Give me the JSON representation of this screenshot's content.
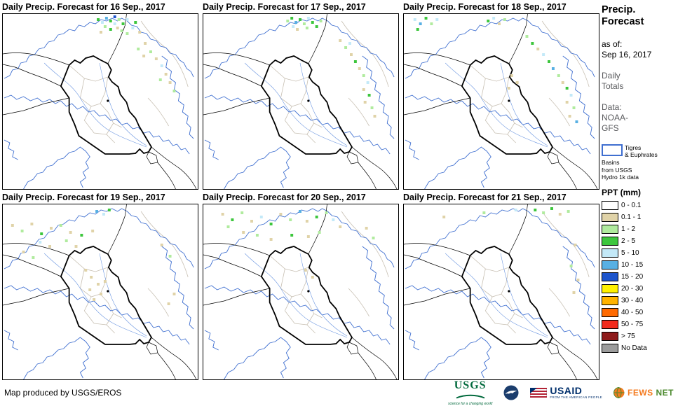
{
  "panels": [
    {
      "title": "Daily Precip. Forecast for 16 Sep., 2017",
      "cells": [
        [
          136,
          6,
          "g"
        ],
        [
          142,
          10,
          "lb"
        ],
        [
          148,
          4,
          "b"
        ],
        [
          154,
          8,
          "g"
        ],
        [
          160,
          2,
          "db"
        ],
        [
          160,
          12,
          "lb"
        ],
        [
          166,
          6,
          "lg"
        ],
        [
          172,
          12,
          "g"
        ],
        [
          178,
          6,
          "lb"
        ],
        [
          146,
          16,
          "lg"
        ],
        [
          154,
          20,
          "g"
        ],
        [
          164,
          18,
          "t"
        ],
        [
          170,
          22,
          "lg"
        ],
        [
          140,
          24,
          "t"
        ],
        [
          178,
          26,
          "lg"
        ],
        [
          186,
          18,
          "lb"
        ],
        [
          190,
          10,
          "g"
        ],
        [
          196,
          24,
          "t"
        ],
        [
          194,
          48,
          "lg"
        ],
        [
          202,
          58,
          "t"
        ],
        [
          204,
          40,
          "t"
        ],
        [
          212,
          52,
          "lg"
        ],
        [
          220,
          62,
          "t"
        ],
        [
          228,
          72,
          "lb"
        ],
        [
          234,
          84,
          "t"
        ],
        [
          226,
          92,
          "lg"
        ],
        [
          240,
          96,
          "t"
        ],
        [
          246,
          108,
          "lg"
        ]
      ]
    },
    {
      "title": "Daily Precip. Forecast for 17 Sep., 2017",
      "cells": [
        [
          120,
          8,
          "lg"
        ],
        [
          126,
          4,
          "g"
        ],
        [
          132,
          10,
          "b"
        ],
        [
          138,
          6,
          "g"
        ],
        [
          144,
          12,
          "lg"
        ],
        [
          150,
          4,
          "lb"
        ],
        [
          156,
          10,
          "g"
        ],
        [
          148,
          18,
          "lg"
        ],
        [
          134,
          20,
          "t"
        ],
        [
          162,
          16,
          "g"
        ],
        [
          168,
          8,
          "lg"
        ],
        [
          128,
          16,
          "lb"
        ],
        [
          196,
          36,
          "t"
        ],
        [
          204,
          46,
          "lg"
        ],
        [
          210,
          40,
          "lb"
        ],
        [
          212,
          56,
          "t"
        ],
        [
          218,
          66,
          "g"
        ],
        [
          224,
          76,
          "t"
        ],
        [
          230,
          86,
          "lg"
        ],
        [
          236,
          96,
          "lb"
        ],
        [
          230,
          106,
          "t"
        ],
        [
          238,
          114,
          "g"
        ],
        [
          232,
          124,
          "t"
        ],
        [
          242,
          132,
          "lg"
        ],
        [
          246,
          144,
          "t"
        ]
      ]
    },
    {
      "title": "Daily Precip. Forecast for 18 Sep., 2017",
      "cells": [
        [
          14,
          6,
          "lb"
        ],
        [
          22,
          12,
          "b"
        ],
        [
          30,
          4,
          "g"
        ],
        [
          38,
          12,
          "lg"
        ],
        [
          18,
          20,
          "g"
        ],
        [
          46,
          6,
          "lb"
        ],
        [
          120,
          8,
          "g"
        ],
        [
          128,
          4,
          "lb"
        ],
        [
          136,
          12,
          "t"
        ],
        [
          144,
          6,
          "lg"
        ],
        [
          176,
          30,
          "lg"
        ],
        [
          184,
          40,
          "g"
        ],
        [
          192,
          48,
          "t"
        ],
        [
          200,
          56,
          "lb"
        ],
        [
          208,
          66,
          "g"
        ],
        [
          214,
          76,
          "b"
        ],
        [
          222,
          86,
          "lg"
        ],
        [
          228,
          96,
          "t"
        ],
        [
          234,
          104,
          "g"
        ],
        [
          240,
          114,
          "lb"
        ],
        [
          234,
          124,
          "t"
        ],
        [
          244,
          132,
          "lg"
        ],
        [
          238,
          144,
          "t"
        ],
        [
          248,
          152,
          "b"
        ],
        [
          154,
          86,
          "t"
        ],
        [
          162,
          96,
          "t"
        ],
        [
          150,
          104,
          "t"
        ]
      ]
    },
    {
      "title": "Daily Precip. Forecast for 19 Sep., 2017",
      "cells": [
        [
          12,
          28,
          "t"
        ],
        [
          26,
          36,
          "lg"
        ],
        [
          40,
          26,
          "t"
        ],
        [
          54,
          40,
          "g"
        ],
        [
          68,
          32,
          "t"
        ],
        [
          82,
          28,
          "lg"
        ],
        [
          96,
          38,
          "t"
        ],
        [
          52,
          52,
          "lb"
        ],
        [
          66,
          58,
          "t"
        ],
        [
          112,
          42,
          "g"
        ],
        [
          128,
          36,
          "t"
        ],
        [
          28,
          66,
          "t"
        ],
        [
          42,
          74,
          "lg"
        ],
        [
          134,
          8,
          "b"
        ],
        [
          144,
          12,
          "lb"
        ],
        [
          152,
          6,
          "g"
        ],
        [
          90,
          50,
          "lg"
        ],
        [
          104,
          58,
          "t"
        ],
        [
          118,
          92,
          "t"
        ],
        [
          126,
          102,
          "t"
        ],
        [
          136,
          112,
          "t"
        ],
        [
          124,
          120,
          "t"
        ],
        [
          146,
          108,
          "t"
        ],
        [
          140,
          126,
          "t"
        ],
        [
          130,
          134,
          "t"
        ],
        [
          228,
          56,
          "t"
        ],
        [
          240,
          72,
          "lg"
        ],
        [
          246,
          126,
          "t"
        ],
        [
          238,
          140,
          "t"
        ]
      ]
    },
    {
      "title": "Daily Precip. Forecast for 20 Sep., 2017",
      "cells": [
        [
          26,
          12,
          "t"
        ],
        [
          40,
          20,
          "g"
        ],
        [
          54,
          10,
          "lg"
        ],
        [
          68,
          22,
          "t"
        ],
        [
          82,
          16,
          "lb"
        ],
        [
          96,
          26,
          "g"
        ],
        [
          110,
          12,
          "t"
        ],
        [
          124,
          20,
          "lg"
        ],
        [
          138,
          8,
          "b"
        ],
        [
          148,
          22,
          "t"
        ],
        [
          162,
          16,
          "g"
        ],
        [
          176,
          10,
          "lg"
        ],
        [
          56,
          38,
          "t"
        ],
        [
          76,
          42,
          "lg"
        ],
        [
          96,
          48,
          "t"
        ],
        [
          126,
          42,
          "g"
        ],
        [
          150,
          44,
          "t"
        ],
        [
          166,
          38,
          "lg"
        ],
        [
          186,
          20,
          "lb"
        ],
        [
          196,
          30,
          "t"
        ],
        [
          34,
          30,
          "lg"
        ],
        [
          146,
          92,
          "t"
        ],
        [
          156,
          102,
          "t"
        ],
        [
          234,
          32,
          "t"
        ],
        [
          244,
          46,
          "lg"
        ]
      ]
    },
    {
      "title": "Daily Precip. Forecast for 21 Sep., 2017",
      "cells": [
        [
          188,
          6,
          "g"
        ],
        [
          200,
          10,
          "lg"
        ],
        [
          212,
          4,
          "g"
        ],
        [
          224,
          12,
          "t"
        ],
        [
          236,
          8,
          "lg"
        ],
        [
          246,
          56,
          "t"
        ],
        [
          240,
          86,
          "lg"
        ],
        [
          250,
          106,
          "t"
        ],
        [
          56,
          16,
          "t"
        ],
        [
          114,
          10,
          "lg"
        ],
        [
          160,
          6,
          "lb"
        ],
        [
          244,
          124,
          "t"
        ]
      ]
    }
  ],
  "cell_colors": {
    "t": "#e0d3a8",
    "lg": "#b0eb9e",
    "g": "#3dc63d",
    "lb": "#c3e9f8",
    "b": "#58b0e3",
    "db": "#1e55cc"
  },
  "sidebar": {
    "title": "Precip.\nForecast",
    "as_of": "as of:\nSep 16, 2017",
    "totals": "Daily\nTotals",
    "data_source": "Data:\nNOAA-\nGFS",
    "basin_line1": "Tigres\n& Euphrates",
    "basin_line2": "Basins\nfrom USGS\nHydro 1k data",
    "legend_title": "PPT (mm)",
    "legend": [
      {
        "label": "0 - 0.1",
        "color": "#ffffff"
      },
      {
        "label": "0.1 - 1",
        "color": "#e0d3a8"
      },
      {
        "label": "1 - 2",
        "color": "#b0eb9e"
      },
      {
        "label": "2 - 5",
        "color": "#3dc63d"
      },
      {
        "label": "5 - 10",
        "color": "#c3e9f8"
      },
      {
        "label": "10 - 15",
        "color": "#58b0e3"
      },
      {
        "label": "15 - 20",
        "color": "#1e55cc"
      },
      {
        "label": "20 - 30",
        "color": "#fff100"
      },
      {
        "label": "30 - 40",
        "color": "#ffb300"
      },
      {
        "label": "40 - 50",
        "color": "#ff6a00"
      },
      {
        "label": "50 - 75",
        "color": "#f22b1d"
      },
      {
        "label": "> 75",
        "color": "#8e1b1b"
      },
      {
        "label": "No Data",
        "color": "#9c9c9c"
      }
    ]
  },
  "footer": {
    "credit": "Map produced by USGS/EROS",
    "usgs_text": "USGS",
    "usgs_tagline": "science for a changing world",
    "usaid_text": "USAID",
    "usaid_tagline": "FROM THE AMERICAN PEOPLE",
    "fews_text_1": "FEWS",
    "fews_text_2": "NET"
  }
}
